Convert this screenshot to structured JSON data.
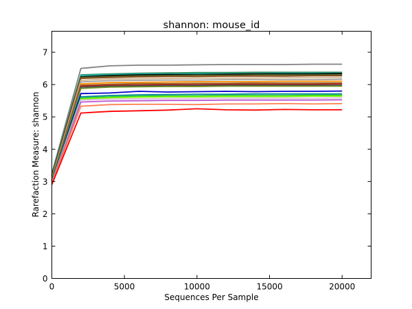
{
  "chart_data": {
    "type": "line",
    "title": "shannon: mouse_id",
    "xlabel": "Sequences Per Sample",
    "ylabel": "Rarefaction Measure: shannon",
    "xlim": [
      0,
      22000
    ],
    "ylim": [
      0,
      7.65
    ],
    "xticks": [
      0,
      5000,
      10000,
      15000,
      20000
    ],
    "yticks": [
      0,
      1,
      2,
      3,
      4,
      5,
      6,
      7
    ],
    "grid": false,
    "legend": "none",
    "x": [
      0,
      2000,
      4000,
      6000,
      8000,
      10000,
      12000,
      14000,
      16000,
      18000,
      20000
    ],
    "series": [
      {
        "color": "#808080",
        "values": [
          3.25,
          6.5,
          6.58,
          6.6,
          6.6,
          6.61,
          6.62,
          6.62,
          6.62,
          6.63,
          6.63
        ]
      },
      {
        "color": "#2e8b57",
        "values": [
          3.22,
          6.3,
          6.33,
          6.35,
          6.36,
          6.37,
          6.37,
          6.38,
          6.38,
          6.38,
          6.38
        ]
      },
      {
        "color": "#20b2aa",
        "values": [
          3.2,
          6.28,
          6.31,
          6.33,
          6.33,
          6.34,
          6.34,
          6.34,
          6.35,
          6.35,
          6.35
        ]
      },
      {
        "color": "#000000",
        "values": [
          3.18,
          6.24,
          6.28,
          6.3,
          6.31,
          6.31,
          6.32,
          6.33,
          6.33,
          6.33,
          6.34
        ]
      },
      {
        "color": "#556b2f",
        "values": [
          3.15,
          6.22,
          6.25,
          6.27,
          6.28,
          6.29,
          6.29,
          6.3,
          6.3,
          6.3,
          6.3
        ]
      },
      {
        "color": "#8b4513",
        "values": [
          3.12,
          6.19,
          6.22,
          6.24,
          6.25,
          6.25,
          6.26,
          6.26,
          6.26,
          6.27,
          6.27
        ]
      },
      {
        "color": "#d2b48c",
        "values": [
          3.1,
          6.13,
          6.17,
          6.18,
          6.19,
          6.2,
          6.2,
          6.2,
          6.21,
          6.21,
          6.21
        ]
      },
      {
        "color": "#a0a0a0",
        "values": [
          3.08,
          6.08,
          6.12,
          6.13,
          6.14,
          6.14,
          6.15,
          6.15,
          6.15,
          6.15,
          6.16
        ]
      },
      {
        "color": "#ff8c00",
        "values": [
          3.06,
          6.02,
          6.06,
          6.07,
          6.08,
          6.09,
          6.09,
          6.09,
          6.1,
          6.1,
          6.1
        ]
      },
      {
        "color": "#9c661f",
        "values": [
          3.05,
          5.98,
          6.01,
          6.03,
          6.03,
          6.04,
          6.04,
          6.05,
          6.05,
          6.05,
          6.05
        ]
      },
      {
        "color": "#b22222",
        "values": [
          3.04,
          5.95,
          5.98,
          5.99,
          6.0,
          6.0,
          6.01,
          6.01,
          6.01,
          6.01,
          6.02
        ]
      },
      {
        "color": "#4d4d4d",
        "values": [
          3.03,
          5.92,
          5.95,
          5.96,
          5.97,
          5.97,
          5.98,
          5.98,
          5.98,
          5.98,
          5.98
        ]
      },
      {
        "color": "#6b8e23",
        "values": [
          3.02,
          5.88,
          5.92,
          5.93,
          5.94,
          5.94,
          5.95,
          5.95,
          5.95,
          5.95,
          5.95
        ]
      },
      {
        "color": "#0000cd",
        "values": [
          3.0,
          5.72,
          5.74,
          5.79,
          5.77,
          5.78,
          5.79,
          5.78,
          5.79,
          5.79,
          5.8
        ]
      },
      {
        "color": "#008b8b",
        "values": [
          2.99,
          5.62,
          5.66,
          5.68,
          5.69,
          5.7,
          5.7,
          5.71,
          5.71,
          5.71,
          5.71
        ]
      },
      {
        "color": "#32cd32",
        "values": [
          2.98,
          5.58,
          5.62,
          5.64,
          5.65,
          5.65,
          5.66,
          5.66,
          5.66,
          5.67,
          5.67
        ]
      },
      {
        "color": "#7cfc00",
        "values": [
          2.97,
          5.55,
          5.59,
          5.61,
          5.62,
          5.62,
          5.63,
          5.63,
          5.63,
          5.64,
          5.64
        ]
      },
      {
        "color": "#d8bfd8",
        "values": [
          2.96,
          5.52,
          5.55,
          5.56,
          5.57,
          5.57,
          5.58,
          5.58,
          5.58,
          5.58,
          5.59
        ]
      },
      {
        "color": "#ba55d3",
        "values": [
          2.95,
          5.46,
          5.49,
          5.5,
          5.51,
          5.51,
          5.52,
          5.52,
          5.52,
          5.52,
          5.53
        ]
      },
      {
        "color": "#ff7f50",
        "values": [
          2.93,
          5.33,
          5.38,
          5.39,
          5.39,
          5.38,
          5.4,
          5.4,
          5.41,
          5.4,
          5.41
        ]
      },
      {
        "color": "#ff0000",
        "values": [
          2.9,
          5.12,
          5.17,
          5.19,
          5.21,
          5.25,
          5.22,
          5.21,
          5.23,
          5.22,
          5.22
        ]
      }
    ]
  }
}
